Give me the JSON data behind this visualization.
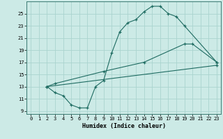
{
  "xlabel": "Humidex (Indice chaleur)",
  "bg_color": "#cceae6",
  "grid_color": "#aad4cf",
  "line_color": "#1e6b61",
  "xlim": [
    -0.5,
    23.5
  ],
  "ylim": [
    8.5,
    27
  ],
  "xticks": [
    0,
    1,
    2,
    3,
    4,
    5,
    6,
    7,
    8,
    9,
    10,
    11,
    12,
    13,
    14,
    15,
    16,
    17,
    18,
    19,
    20,
    21,
    22,
    23
  ],
  "yticks": [
    9,
    11,
    13,
    15,
    17,
    19,
    21,
    23,
    25
  ],
  "curve1_x": [
    2,
    3,
    4,
    5,
    6,
    7,
    8,
    9,
    10,
    11,
    12,
    13,
    14,
    15,
    16,
    17,
    18,
    19,
    23
  ],
  "curve1_y": [
    13,
    12,
    11.5,
    10,
    9.5,
    9.5,
    13,
    14,
    18.5,
    22,
    23.5,
    24,
    25.3,
    26.2,
    26.2,
    25,
    24.5,
    23,
    17
  ],
  "curve2_x": [
    2,
    3,
    9,
    14,
    19,
    20,
    23
  ],
  "curve2_y": [
    13,
    13.5,
    15.5,
    17,
    20,
    20,
    17
  ],
  "curve3_x": [
    2,
    23
  ],
  "curve3_y": [
    13,
    16.5
  ]
}
